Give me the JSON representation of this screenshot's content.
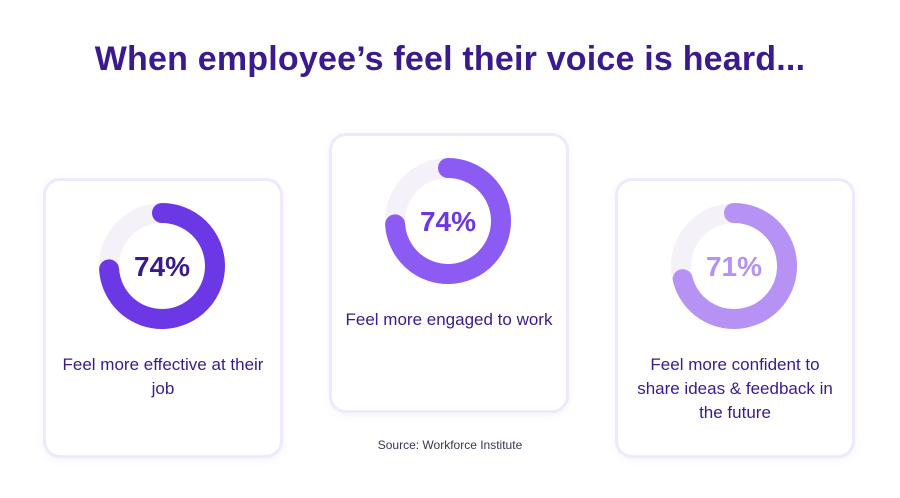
{
  "title": "When employee’s feel their voice is heard...",
  "source": "Source: Workforce Institute",
  "track_color": "#f5f1f8",
  "chart_data": [
    {
      "type": "pie",
      "value": 74,
      "label": "74%",
      "description": "Feel more effective at their job",
      "color": "#6c38e6"
    },
    {
      "type": "pie",
      "value": 74,
      "label": "74%",
      "description": "Feel more engaged to work",
      "color": "#8c5bf4"
    },
    {
      "type": "pie",
      "value": 71,
      "label": "71%",
      "description": "Feel more confident to share ideas & feedback in the future",
      "color": "#b592f3"
    }
  ]
}
